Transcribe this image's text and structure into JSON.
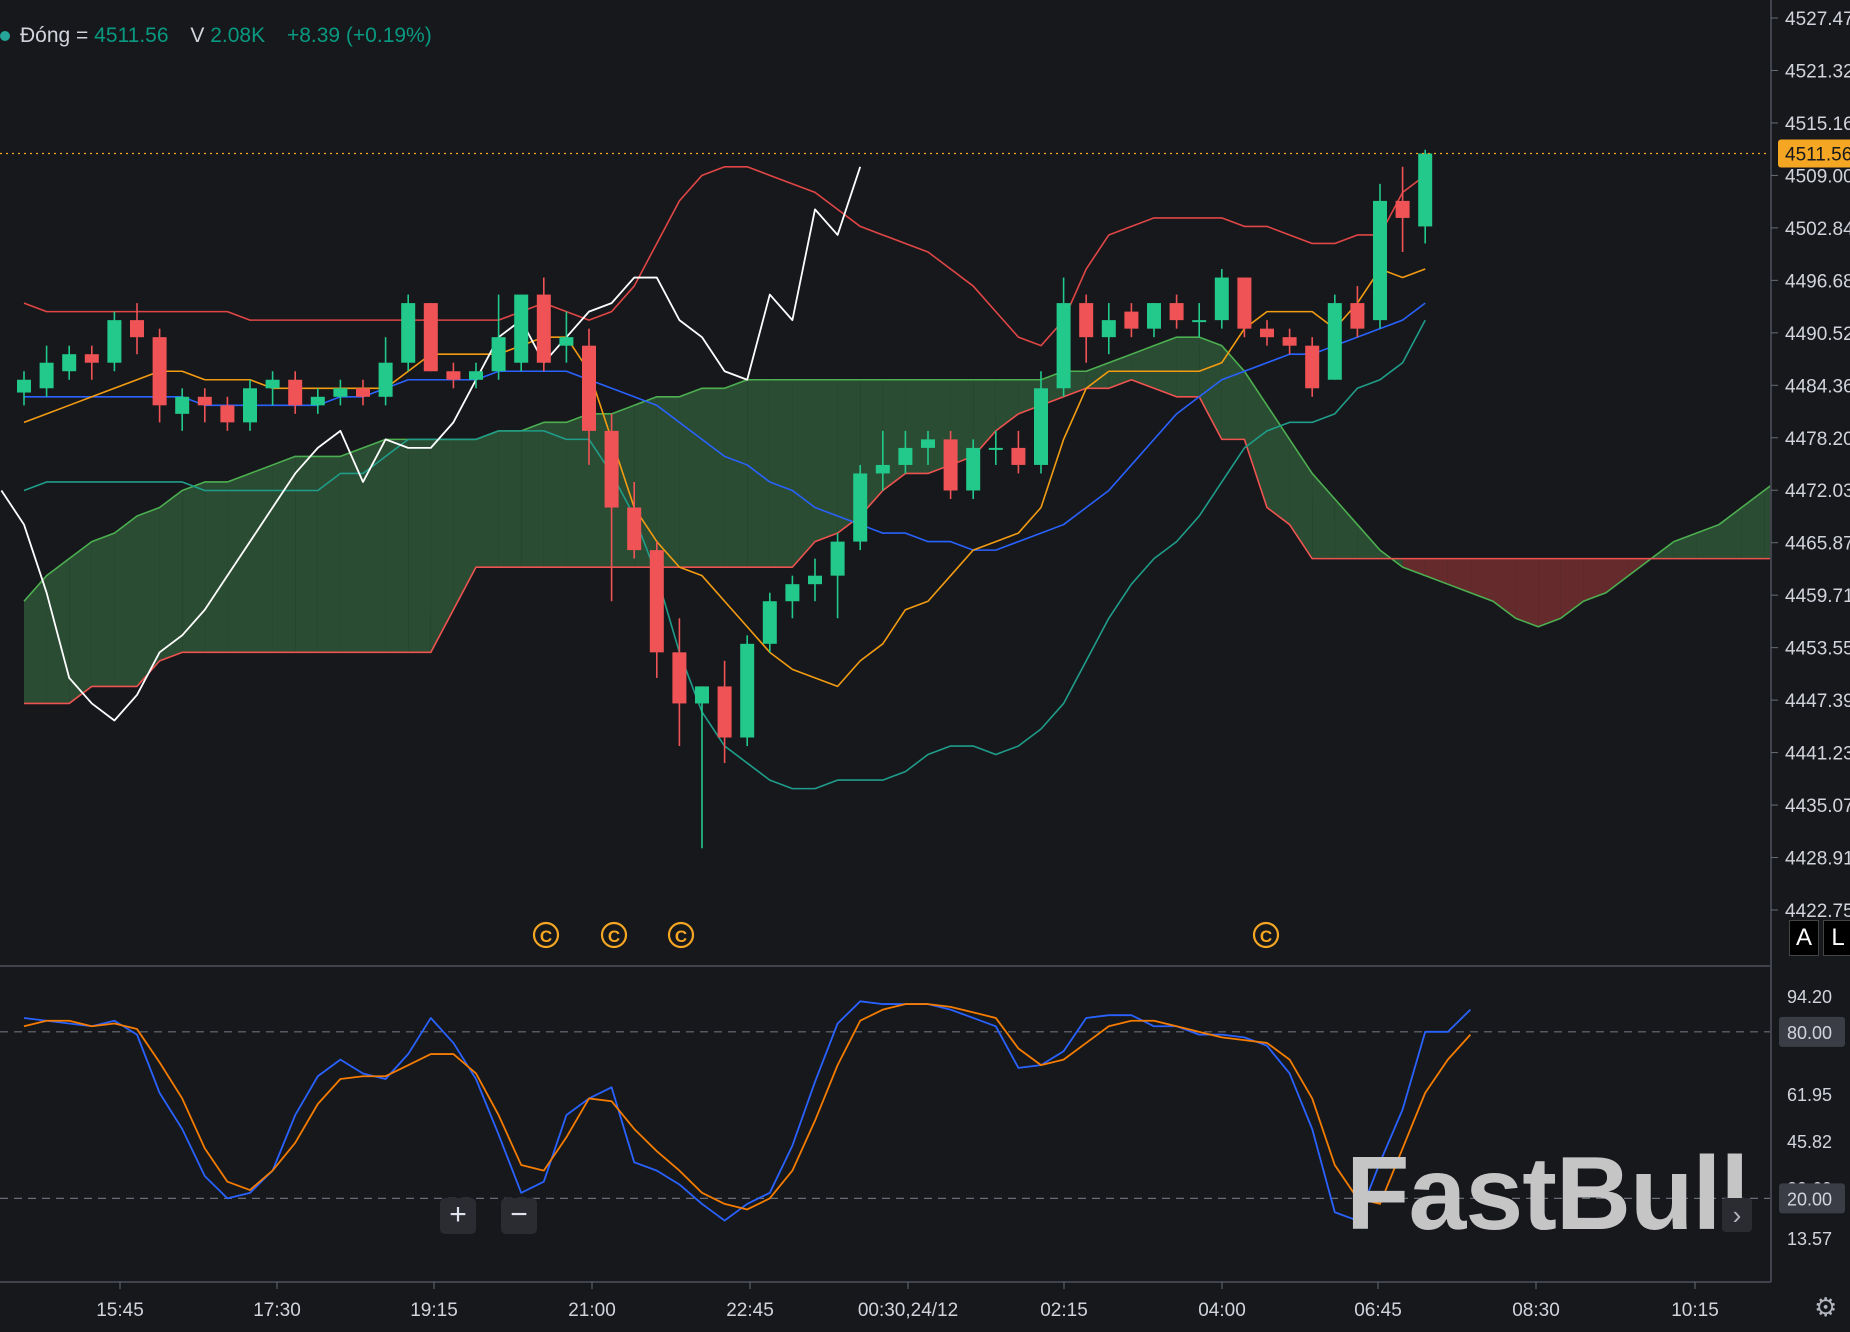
{
  "legend": {
    "label": "Đóng =",
    "close": "4511.56",
    "volume_label": "V",
    "volume": "2.08K",
    "change": "+8.39 (+0.19%)"
  },
  "colors": {
    "background": "#17181c",
    "bull": "#22c98a",
    "bear": "#f05356",
    "bb_upper": "#e04646",
    "bb_middle": "#2962ff",
    "bb_lower": "#1f9d8a",
    "tenkan": "#f39c12",
    "chikou": "#ffffff",
    "senkou_a": "#4caf50",
    "senkou_b": "#ef5350",
    "cloud_bear": "#6e2c2e",
    "cloud_bull": "#2c5235",
    "stoch_k": "#2962ff",
    "stoch_d": "#f57c00",
    "price_tag": "#f5a623"
  },
  "toolbar": {
    "zoom_in": "+",
    "zoom_out": "−",
    "auto_scale": "A",
    "log_scale": "L",
    "settings_icon": "gear-icon",
    "scroll_right_icon": "chevron-right-icon"
  },
  "brand": "FastBull",
  "chart_data": [
    {
      "type": "candlestick",
      "x_ticks": [
        "15:45",
        "17:30",
        "19:15",
        "21:00",
        "22:45",
        "00:30,24/12",
        "02:15",
        "04:00",
        "06:45",
        "08:30",
        "10:15"
      ],
      "y_ticks": [
        "4527.47",
        "4521.32",
        "4515.16",
        "4509.00",
        "4502.84",
        "4496.68",
        "4490.52",
        "4484.36",
        "4478.20",
        "4472.03",
        "4465.87",
        "4459.71",
        "4453.55",
        "4447.39",
        "4441.23",
        "4435.07",
        "4428.91",
        "4422.75"
      ],
      "ylim": [
        4422.75,
        4527.47
      ],
      "last_price": "4511.56",
      "event_markers": [
        "C",
        "C",
        "C",
        "C"
      ],
      "candles": [
        {
          "o": 4483.5,
          "h": 4486,
          "l": 4482,
          "c": 4485
        },
        {
          "o": 4484,
          "h": 4489,
          "l": 4483,
          "c": 4487
        },
        {
          "o": 4486,
          "h": 4489,
          "l": 4485,
          "c": 4488
        },
        {
          "o": 4488,
          "h": 4489,
          "l": 4485,
          "c": 4487
        },
        {
          "o": 4487,
          "h": 4493,
          "l": 4486,
          "c": 4492
        },
        {
          "o": 4492,
          "h": 4494,
          "l": 4488,
          "c": 4490
        },
        {
          "o": 4490,
          "h": 4491,
          "l": 4480,
          "c": 4482
        },
        {
          "o": 4481,
          "h": 4484,
          "l": 4479,
          "c": 4483
        },
        {
          "o": 4483,
          "h": 4484,
          "l": 4480,
          "c": 4482
        },
        {
          "o": 4482,
          "h": 4483,
          "l": 4479,
          "c": 4480
        },
        {
          "o": 4480,
          "h": 4485,
          "l": 4479,
          "c": 4484
        },
        {
          "o": 4484,
          "h": 4486,
          "l": 4482,
          "c": 4485
        },
        {
          "o": 4485,
          "h": 4486,
          "l": 4481,
          "c": 4482
        },
        {
          "o": 4482,
          "h": 4484,
          "l": 4481,
          "c": 4483
        },
        {
          "o": 4483,
          "h": 4485,
          "l": 4482,
          "c": 4484
        },
        {
          "o": 4484,
          "h": 4485,
          "l": 4482,
          "c": 4483
        },
        {
          "o": 4483,
          "h": 4490,
          "l": 4482,
          "c": 4487
        },
        {
          "o": 4487,
          "h": 4495,
          "l": 4486,
          "c": 4494
        },
        {
          "o": 4494,
          "h": 4494,
          "l": 4486,
          "c": 4486
        },
        {
          "o": 4486,
          "h": 4487,
          "l": 4484,
          "c": 4485
        },
        {
          "o": 4485,
          "h": 4487,
          "l": 4484,
          "c": 4486
        },
        {
          "o": 4486,
          "h": 4495,
          "l": 4485,
          "c": 4490
        },
        {
          "o": 4487,
          "h": 4495,
          "l": 4486,
          "c": 4495
        },
        {
          "o": 4495,
          "h": 4497,
          "l": 4486,
          "c": 4487
        },
        {
          "o": 4489,
          "h": 4493,
          "l": 4487,
          "c": 4490
        },
        {
          "o": 4489,
          "h": 4491,
          "l": 4475,
          "c": 4479
        },
        {
          "o": 4479,
          "h": 4481,
          "l": 4459,
          "c": 4470
        },
        {
          "o": 4470,
          "h": 4473,
          "l": 4464,
          "c": 4465
        },
        {
          "o": 4465,
          "h": 4466,
          "l": 4450,
          "c": 4453
        },
        {
          "o": 4453,
          "h": 4457,
          "l": 4442,
          "c": 4447
        },
        {
          "o": 4447,
          "h": 4449,
          "l": 4430,
          "c": 4449
        },
        {
          "o": 4449,
          "h": 4452,
          "l": 4440,
          "c": 4443
        },
        {
          "o": 4443,
          "h": 4455,
          "l": 4442,
          "c": 4454
        },
        {
          "o": 4454,
          "h": 4460,
          "l": 4453,
          "c": 4459
        },
        {
          "o": 4459,
          "h": 4462,
          "l": 4457,
          "c": 4461
        },
        {
          "o": 4461,
          "h": 4464,
          "l": 4459,
          "c": 4462
        },
        {
          "o": 4462,
          "h": 4467,
          "l": 4457,
          "c": 4466
        },
        {
          "o": 4466,
          "h": 4475,
          "l": 4465,
          "c": 4474
        },
        {
          "o": 4474,
          "h": 4479,
          "l": 4472,
          "c": 4475
        },
        {
          "o": 4475,
          "h": 4479,
          "l": 4474,
          "c": 4477
        },
        {
          "o": 4477,
          "h": 4479,
          "l": 4475,
          "c": 4478
        },
        {
          "o": 4478,
          "h": 4479,
          "l": 4471,
          "c": 4472
        },
        {
          "o": 4472,
          "h": 4478,
          "l": 4471,
          "c": 4477
        },
        {
          "o": 4477,
          "h": 4479,
          "l": 4475,
          "c": 4477
        },
        {
          "o": 4477,
          "h": 4479,
          "l": 4474,
          "c": 4475
        },
        {
          "o": 4475,
          "h": 4486,
          "l": 4474,
          "c": 4484
        },
        {
          "o": 4484,
          "h": 4497,
          "l": 4483,
          "c": 4494
        },
        {
          "o": 4494,
          "h": 4495,
          "l": 4487,
          "c": 4490
        },
        {
          "o": 4490,
          "h": 4494,
          "l": 4488,
          "c": 4492
        },
        {
          "o": 4493,
          "h": 4494,
          "l": 4490,
          "c": 4491
        },
        {
          "o": 4491,
          "h": 4494,
          "l": 4490,
          "c": 4494
        },
        {
          "o": 4494,
          "h": 4495,
          "l": 4491,
          "c": 4492
        },
        {
          "o": 4492,
          "h": 4494,
          "l": 4490,
          "c": 4492
        },
        {
          "o": 4492,
          "h": 4498,
          "l": 4491,
          "c": 4497
        },
        {
          "o": 4497,
          "h": 4497,
          "l": 4490,
          "c": 4491
        },
        {
          "o": 4491,
          "h": 4492,
          "l": 4489,
          "c": 4490
        },
        {
          "o": 4490,
          "h": 4491,
          "l": 4488,
          "c": 4489
        },
        {
          "o": 4489,
          "h": 4490,
          "l": 4483,
          "c": 4484
        },
        {
          "o": 4485,
          "h": 4495,
          "l": 4485,
          "c": 4494
        },
        {
          "o": 4494,
          "h": 4496,
          "l": 4490,
          "c": 4491
        },
        {
          "o": 4492,
          "h": 4508,
          "l": 4491,
          "c": 4506
        },
        {
          "o": 4506,
          "h": 4510,
          "l": 4500,
          "c": 4504
        },
        {
          "o": 4503,
          "h": 4512,
          "l": 4501,
          "c": 4511.56
        }
      ],
      "series": [
        {
          "name": "bb_upper",
          "values": [
            4494,
            4493,
            4493,
            4493,
            4493,
            4493,
            4493,
            4493,
            4493,
            4493,
            4492,
            4492,
            4492,
            4492,
            4492,
            4492,
            4492,
            4492,
            4492,
            4492,
            4492,
            4492,
            4493,
            4494,
            4493,
            4492,
            4493,
            4496,
            4501,
            4506,
            4509,
            4510,
            4510,
            4509,
            4508,
            4507,
            4505,
            4503,
            4502,
            4501,
            4500,
            4498,
            4496,
            4493,
            4490,
            4489,
            4492,
            4498,
            4502,
            4503,
            4504,
            4504,
            4504,
            4504,
            4503,
            4503,
            4502,
            4501,
            4501,
            4502,
            4502,
            4507,
            4509
          ]
        },
        {
          "name": "bb_middle",
          "values": [
            4483,
            4483,
            4483,
            4483,
            4483,
            4483,
            4483,
            4483,
            4482,
            4482,
            4482,
            4482,
            4482,
            4482,
            4483,
            4483,
            4484,
            4485,
            4485,
            4485,
            4485,
            4486,
            4486,
            4486,
            4486,
            4485,
            4484,
            4483,
            4482,
            4480,
            4478,
            4476,
            4475,
            4473,
            4472,
            4470,
            4469,
            4468,
            4467,
            4467,
            4466,
            4466,
            4465,
            4465,
            4466,
            4467,
            4468,
            4470,
            4472,
            4475,
            4478,
            4481,
            4483,
            4485,
            4486,
            4487,
            4488,
            4488,
            4489,
            4490,
            4491,
            4492,
            4494
          ]
        },
        {
          "name": "bb_lower",
          "values": [
            4472,
            4473,
            4473,
            4473,
            4473,
            4473,
            4473,
            4473,
            4472,
            4472,
            4472,
            4472,
            4472,
            4472,
            4474,
            4474,
            4476,
            4478,
            4478,
            4478,
            4478,
            4479,
            4479,
            4479,
            4478,
            4478,
            4474,
            4469,
            4462,
            4453,
            4446,
            4442,
            4440,
            4438,
            4437,
            4437,
            4438,
            4438,
            4438,
            4439,
            4441,
            4442,
            4442,
            4441,
            4442,
            4444,
            4447,
            4452,
            4457,
            4461,
            4464,
            4466,
            4469,
            4473,
            4477,
            4479,
            4480,
            4480,
            4481,
            4484,
            4485,
            4487,
            4492
          ]
        },
        {
          "name": "tenkan",
          "values": [
            4480,
            4481,
            4482,
            4483,
            4484,
            4485,
            4486,
            4486,
            4485,
            4485,
            4485,
            4484,
            4484,
            4484,
            4484,
            4484,
            4484,
            4486,
            4488,
            4488,
            4488,
            4488,
            4489,
            4490,
            4490,
            4486,
            4478,
            4470,
            4466,
            4463,
            4462,
            4459,
            4456,
            4453,
            4451,
            4450,
            4449,
            4452,
            4454,
            4458,
            4459,
            4462,
            4465,
            4466,
            4467,
            4470,
            4478,
            4484,
            4486,
            4486,
            4486,
            4486,
            4486,
            4487,
            4491,
            4493,
            4493,
            4493,
            4491,
            4494,
            4498,
            4497,
            4498
          ]
        },
        {
          "name": "chikou",
          "values": [
            4472,
            4468,
            4460,
            4450,
            4447,
            4445,
            4448,
            4453,
            4455,
            4458,
            4462,
            4466,
            4470,
            4474,
            4477,
            4479,
            4473,
            4478,
            4477,
            4477,
            4480,
            4485,
            4490,
            4492,
            4487,
            4490,
            4493,
            4494,
            4497,
            4497,
            4492,
            4490,
            4486,
            4485,
            4495,
            4492,
            4505,
            4502,
            4510
          ]
        },
        {
          "name": "senkou_a",
          "values": [
            4459,
            4462,
            4464,
            4466,
            4467,
            4469,
            4470,
            4472,
            4473,
            4473,
            4474,
            4475,
            4476,
            4476,
            4476,
            4477,
            4478,
            4478,
            4478,
            4478,
            4478,
            4479,
            4479,
            4480,
            4480,
            4481,
            4481,
            4482,
            4483,
            4483,
            4484,
            4484,
            4485,
            4485,
            4485,
            4485,
            4485,
            4485,
            4485,
            4485,
            4485,
            4485,
            4485,
            4485,
            4485,
            4485,
            4486,
            4486,
            4487,
            4488,
            4489,
            4490,
            4490,
            4489,
            4486,
            4482,
            4478,
            4474,
            4471,
            4468,
            4465,
            4463,
            4462,
            4461,
            4460,
            4459,
            4457,
            4456,
            4457,
            4459,
            4460,
            4462,
            4464,
            4466,
            4467,
            4468,
            4470,
            4472,
            4474,
            4474,
            4474,
            4474,
            4475,
            4475,
            4475,
            4476
          ]
        },
        {
          "name": "senkou_b",
          "values": [
            4447,
            4447,
            4447,
            4449,
            4449,
            4449,
            4452,
            4453,
            4453,
            4453,
            4453,
            4453,
            4453,
            4453,
            4453,
            4453,
            4453,
            4453,
            4453,
            4458,
            4463,
            4463,
            4463,
            4463,
            4463,
            4463,
            4463,
            4463,
            4463,
            4463,
            4463,
            4463,
            4463,
            4463,
            4463,
            4466,
            4467,
            4469,
            4472,
            4474,
            4474,
            4475,
            4476,
            4479,
            4481,
            4482,
            4483,
            4484,
            4484,
            4485,
            4484,
            4483,
            4483,
            4478,
            4478,
            4470,
            4468,
            4464,
            4464,
            4464,
            4464,
            4464,
            4464,
            4464,
            4464,
            4464,
            4464,
            4464,
            4464,
            4464,
            4464,
            4464,
            4464,
            4464,
            4464,
            4464,
            4464,
            4464,
            4464,
            4464,
            4464,
            4464,
            4464,
            4464,
            4464,
            4464
          ]
        }
      ]
    },
    {
      "type": "line",
      "y_ticks": [
        "94.20",
        "80.00",
        "61.95",
        "45.82",
        "29.69",
        "20.00",
        "13.57"
      ],
      "ylim": [
        5,
        103
      ],
      "levels": [
        80,
        20
      ],
      "level_labels": [
        "80.00",
        "20.00"
      ],
      "series": [
        {
          "name": "stoch_k",
          "values": [
            85,
            84,
            83,
            82,
            84,
            79,
            58,
            45,
            28,
            20,
            22,
            30,
            50,
            64,
            70,
            65,
            63,
            72,
            85,
            76,
            63,
            43,
            22,
            26,
            50,
            56,
            60,
            33,
            30,
            25,
            18,
            12,
            18,
            22,
            39,
            62,
            83,
            91,
            90,
            90,
            90,
            88,
            85,
            82,
            67,
            68,
            73,
            85,
            86,
            86,
            82,
            82,
            79,
            79,
            78,
            75,
            65,
            45,
            15,
            12,
            33,
            52,
            80,
            80,
            88
          ]
        },
        {
          "name": "stoch_d",
          "values": [
            82,
            84,
            84,
            82,
            83,
            81,
            69,
            56,
            38,
            26,
            23,
            30,
            40,
            54,
            63,
            64,
            64,
            68,
            72,
            72,
            65,
            50,
            32,
            30,
            42,
            56,
            55,
            45,
            37,
            30,
            22,
            18,
            16,
            20,
            30,
            48,
            68,
            84,
            88,
            90,
            90,
            89,
            87,
            85,
            74,
            68,
            70,
            76,
            82,
            84,
            84,
            82,
            80,
            78,
            77,
            76,
            70,
            56,
            32,
            20,
            18,
            38,
            58,
            70,
            79
          ]
        }
      ]
    }
  ]
}
